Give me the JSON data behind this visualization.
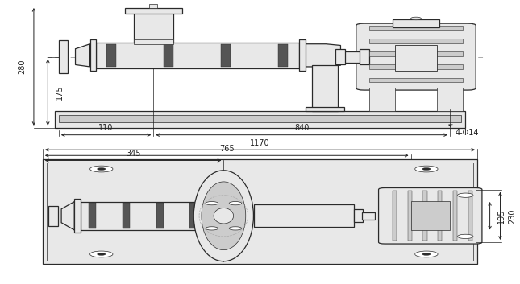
{
  "bg_color": "#ffffff",
  "lc": "#2a2a2a",
  "cc": "#aaaaaa",
  "fl": "#e8e8e8",
  "fd": "#555555",
  "fm": "#cccccc",
  "fs": 7.0
}
